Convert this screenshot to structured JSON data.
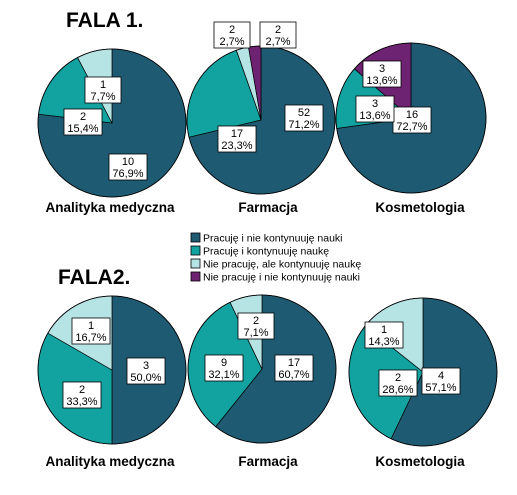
{
  "colors": {
    "c0": "#1e5b73",
    "c1": "#12a2a0",
    "c2": "#b6e3e4",
    "c3": "#6e2372"
  },
  "legend": {
    "entries": [
      "Pracuję i nie kontynuuję nauki",
      "Pracuję i kontynuuję naukę",
      "Nie pracuję, ale kontynuuję naukę",
      "Nie pracuję i nie kontynuuję nauki"
    ]
  },
  "chart_data": [
    {
      "type": "pie",
      "wave": "FALA 1.",
      "title": "Analityka medyczna",
      "slices": [
        {
          "category": 0,
          "count": "10",
          "percent": "76,9%",
          "value": 76.9
        },
        {
          "category": 1,
          "count": "2",
          "percent": "15,4%",
          "value": 15.4
        },
        {
          "category": 2,
          "count": "1",
          "percent": "7,7%",
          "value": 7.7
        }
      ]
    },
    {
      "type": "pie",
      "wave": "FALA 1.",
      "title": "Farmacja",
      "slices": [
        {
          "category": 0,
          "count": "52",
          "percent": "71,2%",
          "value": 71.2
        },
        {
          "category": 1,
          "count": "17",
          "percent": "23,3%",
          "value": 23.3
        },
        {
          "category": 2,
          "count": "2",
          "percent": "2,7%",
          "value": 2.7
        },
        {
          "category": 3,
          "count": "2",
          "percent": "2,7%",
          "value": 2.7
        }
      ]
    },
    {
      "type": "pie",
      "wave": "FALA 1.",
      "title": "Kosmetologia",
      "slices": [
        {
          "category": 0,
          "count": "16",
          "percent": "72,7%",
          "value": 72.7
        },
        {
          "category": 1,
          "count": "3",
          "percent": "13,6%",
          "value": 13.6
        },
        {
          "category": 3,
          "count": "3",
          "percent": "13,6%",
          "value": 13.6
        }
      ]
    },
    {
      "type": "pie",
      "wave": "FALA2.",
      "title": "Analityka medyczna",
      "slices": [
        {
          "category": 0,
          "count": "3",
          "percent": "50,0%",
          "value": 50.0
        },
        {
          "category": 1,
          "count": "2",
          "percent": "33,3%",
          "value": 33.3
        },
        {
          "category": 2,
          "count": "1",
          "percent": "16,7%",
          "value": 16.7
        }
      ]
    },
    {
      "type": "pie",
      "wave": "FALA2.",
      "title": "Farmacja",
      "slices": [
        {
          "category": 0,
          "count": "17",
          "percent": "60,7%",
          "value": 60.7
        },
        {
          "category": 1,
          "count": "9",
          "percent": "32,1%",
          "value": 32.1
        },
        {
          "category": 2,
          "count": "2",
          "percent": "7,1%",
          "value": 7.1
        }
      ]
    },
    {
      "type": "pie",
      "wave": "FALA2.",
      "title": "Kosmetologia",
      "slices": [
        {
          "category": 0,
          "count": "4",
          "percent": "57,1%",
          "value": 57.1
        },
        {
          "category": 1,
          "count": "2",
          "percent": "28,6%",
          "value": 28.6
        },
        {
          "category": 2,
          "count": "1",
          "percent": "14,3%",
          "value": 14.3
        }
      ]
    }
  ]
}
